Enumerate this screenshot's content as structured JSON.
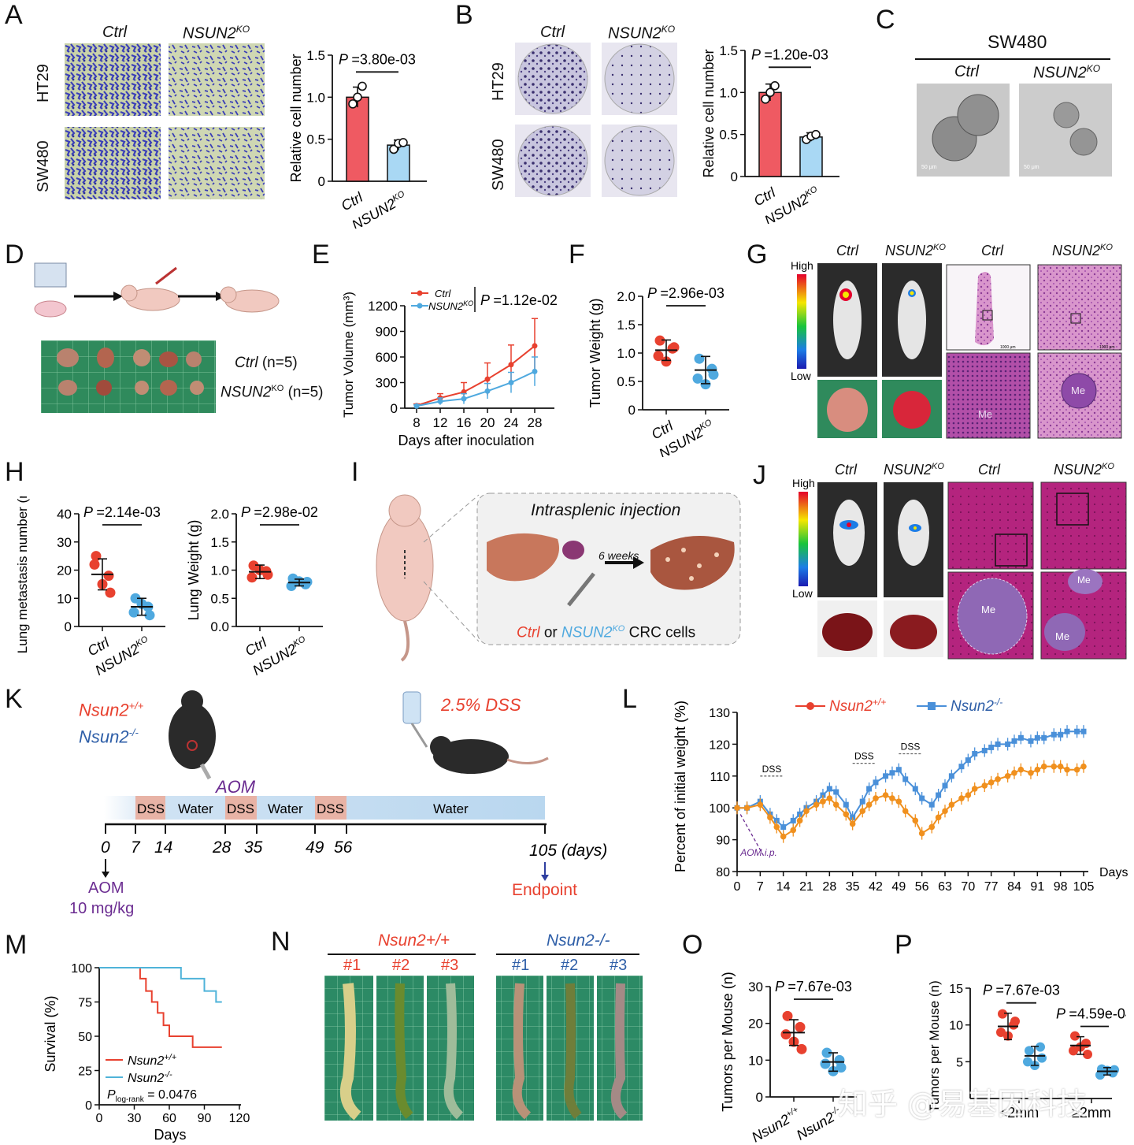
{
  "panels": {
    "A": "A",
    "B": "B",
    "C": "C",
    "D": "D",
    "E": "E",
    "F": "F",
    "G": "G",
    "H": "H",
    "I": "I",
    "J": "J",
    "K": "K",
    "L": "L",
    "M": "M",
    "N": "N",
    "O": "O",
    "P": "P"
  },
  "common": {
    "ctrl": "Ctrl",
    "nsun2ko": "NSUN2",
    "ko_sup": "KO",
    "ht29": "HT29",
    "sw480": "SW480",
    "high": "High",
    "low": "Low",
    "me": "Me"
  },
  "A": {
    "p": "P =3.80e-03",
    "ylabel": "Relative cell number",
    "yticks": [
      "0",
      "0.5",
      "1.0",
      "1.5"
    ]
  },
  "B": {
    "p": "P =1.20e-03",
    "ylabel": "Relative cell number",
    "yticks": [
      "0",
      "0.5",
      "1.0",
      "1.5"
    ]
  },
  "C": {
    "title": "SW480",
    "scale": "50 μm"
  },
  "D": {
    "ctrl_n": "Ctrl (n=5)",
    "ko_n": "(n=5)"
  },
  "E": {
    "p": "P =1.12e-02",
    "ylabel": "Tumor Volume (mm³)",
    "xlabel": "Days after inoculation",
    "xticks": [
      "8",
      "12",
      "16",
      "20",
      "24",
      "28"
    ],
    "yticks": [
      "0",
      "300",
      "600",
      "900",
      "1200"
    ]
  },
  "F": {
    "p": "P =2.96e-03",
    "ylabel": "Tumor Weight (g)",
    "yticks": [
      "0",
      "0.5",
      "1.0",
      "1.5",
      "2.0"
    ]
  },
  "G": {
    "scale": "1000 μm"
  },
  "H": {
    "p1": "P =2.14e-03",
    "ylabel1": "Lung metastasis number (n)",
    "yticks1": [
      "0",
      "10",
      "20",
      "30",
      "40"
    ],
    "p2": "P =2.98e-02",
    "ylabel2": "Lung Weight (g)",
    "yticks2": [
      "0.0",
      "0.5",
      "1.0",
      "1.5",
      "2.0"
    ]
  },
  "I": {
    "title": "Intrasplenic injection",
    "weeks": "6 weeks",
    "or": "or",
    "cells": "CRC cells"
  },
  "K": {
    "wt": "Nsun2",
    "wt_sup": "+/+",
    "ko": "Nsun2",
    "ko_sup": "-/-",
    "dss_title": "2.5% DSS",
    "aom": "AOM",
    "dss": "DSS",
    "water": "Water",
    "days": [
      "0",
      "7",
      "14",
      "28",
      "35",
      "49",
      "56",
      "105 (days)"
    ],
    "aom_dose1": "AOM",
    "aom_dose2": "10 mg/kg",
    "endpoint": "Endpoint"
  },
  "L": {
    "ylabel": "Percent of initial weight (%)",
    "xlabel": "Days",
    "legend_wt": "Nsun2+/+",
    "legend_ko": "Nsun2-/-",
    "aom_ip": "AOM i.p.",
    "dss": "DSS",
    "xticks": [
      "0",
      "7",
      "14",
      "21",
      "28",
      "35",
      "42",
      "49",
      "56",
      "63",
      "70",
      "77",
      "84",
      "91",
      "98",
      "105"
    ],
    "yticks": [
      "80",
      "90",
      "100",
      "110",
      "120",
      "130"
    ]
  },
  "M": {
    "ylabel": "Survival (%)",
    "xlabel": "Days",
    "xticks": [
      "0",
      "30",
      "60",
      "90",
      "120"
    ],
    "yticks": [
      "0",
      "25",
      "50",
      "75",
      "100"
    ],
    "legend_wt": "Nsun2+/+",
    "legend_ko": "Nsun2-/-",
    "p_prefix": "P",
    "p_sub": "log-rank",
    "p_value": "= 0.0476"
  },
  "N": {
    "wt_header": "Nsun2+/+",
    "ko_header": "Nsun2-/-",
    "samples": [
      "#1",
      "#2",
      "#3"
    ]
  },
  "O": {
    "p": "P =7.67e-03",
    "ylabel": "Tumors per Mouse (n)",
    "yticks": [
      "0",
      "10",
      "20",
      "30"
    ],
    "x1": "Nsun2+/+",
    "x2": "Nsun2-/-"
  },
  "P": {
    "p1": "P =7.67e-03",
    "p2": "P =4.59e-04",
    "ylabel": "Tumors per Mouse (n)",
    "yticks": [
      "5",
      "10",
      "15"
    ],
    "x1": "<2mm",
    "x2": "≥2mm"
  },
  "watermark": "知乎 @易基因科技",
  "colors": {
    "red": "#e8412f",
    "blue": "#4fa9df",
    "bar_red": "#ef5a62",
    "bar_blue": "#a9d8f4",
    "L_orange": "#f0901e",
    "L_blue": "#4a90d9",
    "purple": "#6b2c91"
  },
  "chart_data": [
    {
      "id": "A",
      "type": "bar",
      "categories": [
        "Ctrl",
        "NSUN2KO"
      ],
      "values": [
        1.0,
        0.43
      ],
      "errors": [
        0.12,
        0.06
      ],
      "points": [
        [
          0.92,
          1.0,
          1.13
        ],
        [
          0.38,
          0.45,
          0.46
        ]
      ],
      "ylim": [
        0,
        1.5
      ],
      "ylabel": "Relative cell number",
      "title": "P =3.80e-03"
    },
    {
      "id": "B",
      "type": "bar",
      "categories": [
        "Ctrl",
        "NSUN2KO"
      ],
      "values": [
        1.0,
        0.47
      ],
      "errors": [
        0.1,
        0.05
      ],
      "points": [
        [
          0.92,
          1.0,
          1.08
        ],
        [
          0.44,
          0.48,
          0.5
        ]
      ],
      "ylim": [
        0,
        1.5
      ],
      "ylabel": "Relative cell number",
      "title": "P =1.20e-03"
    },
    {
      "id": "E",
      "type": "line",
      "x": [
        8,
        12,
        16,
        20,
        24,
        28
      ],
      "series": [
        {
          "name": "Ctrl",
          "values": [
            30,
            120,
            190,
            340,
            510,
            730
          ],
          "errors": [
            20,
            50,
            110,
            190,
            230,
            320
          ]
        },
        {
          "name": "NSUN2KO",
          "values": [
            25,
            80,
            110,
            200,
            300,
            430
          ],
          "errors": [
            15,
            40,
            60,
            90,
            120,
            170
          ]
        }
      ],
      "ylim": [
        0,
        1200
      ],
      "xlabel": "Days after inoculation",
      "ylabel": "Tumor Volume (mm³)"
    },
    {
      "id": "F",
      "type": "scatter",
      "categories": [
        "Ctrl",
        "NSUN2KO"
      ],
      "means": [
        1.05,
        0.7
      ],
      "errors": [
        0.18,
        0.24
      ],
      "points": [
        [
          1.22,
          1.08,
          0.95,
          0.85,
          1.1
        ],
        [
          0.9,
          0.72,
          0.55,
          0.45,
          0.62
        ]
      ],
      "ylim": [
        0,
        2.0
      ],
      "ylabel": "Tumor Weight (g)"
    },
    {
      "id": "H1",
      "type": "scatter",
      "categories": [
        "Ctrl",
        "NSUN2KO"
      ],
      "means": [
        18.5,
        7
      ],
      "errors": [
        5.5,
        3
      ],
      "points": [
        [
          25,
          18,
          22,
          15,
          12
        ],
        [
          10,
          7,
          5,
          8,
          4
        ]
      ],
      "ylim": [
        0,
        40
      ],
      "ylabel": "Lung metastasis number (n)"
    },
    {
      "id": "H2",
      "type": "scatter",
      "categories": [
        "Ctrl",
        "NSUN2KO"
      ],
      "means": [
        0.97,
        0.78
      ],
      "errors": [
        0.12,
        0.06
      ],
      "points": [
        [
          1.08,
          0.98,
          0.87,
          1.0,
          0.92
        ],
        [
          0.85,
          0.75,
          0.72,
          0.8,
          0.79
        ]
      ],
      "ylim": [
        0,
        2.0
      ],
      "ylabel": "Lung Weight (g)"
    },
    {
      "id": "L",
      "type": "line",
      "x": [
        0,
        3,
        7,
        10,
        12,
        14,
        17,
        19,
        21,
        24,
        26,
        28,
        30,
        33,
        35,
        38,
        40,
        42,
        45,
        47,
        49,
        51,
        54,
        56,
        59,
        61,
        63,
        65,
        68,
        70,
        72,
        75,
        77,
        79,
        82,
        84,
        86,
        89,
        91,
        93,
        96,
        98,
        100,
        103,
        105
      ],
      "series": [
        {
          "name": "Nsun2-/-",
          "values": [
            100,
            100,
            102,
            98,
            96,
            94,
            96,
            98,
            100,
            102,
            104,
            106,
            105,
            101,
            97,
            102,
            106,
            108,
            110,
            111,
            112,
            109,
            106,
            103,
            101,
            104,
            107,
            110,
            113,
            115,
            117,
            118,
            119,
            120,
            120,
            121,
            122,
            121,
            122,
            122,
            123,
            123,
            124,
            124,
            124
          ]
        },
        {
          "name": "Nsun2+/+",
          "values": [
            100,
            100,
            101,
            97,
            94,
            91,
            93,
            96,
            99,
            101,
            102,
            103,
            101,
            98,
            95,
            99,
            101,
            103,
            104,
            103,
            102,
            99,
            96,
            92,
            94,
            97,
            99,
            101,
            103,
            104,
            106,
            107,
            108,
            109,
            110,
            111,
            112,
            111,
            112,
            113,
            113,
            113,
            112,
            112,
            113
          ]
        }
      ],
      "ylim": [
        80,
        130
      ],
      "xlabel": "Days",
      "ylabel": "Percent of initial weight (%)"
    },
    {
      "id": "M",
      "type": "line",
      "series": [
        {
          "name": "Nsun2+/+",
          "x": [
            0,
            30,
            35,
            40,
            45,
            50,
            55,
            60,
            65,
            80,
            105
          ],
          "values": [
            100,
            100,
            92,
            83,
            75,
            67,
            58,
            50,
            50,
            42,
            42
          ]
        },
        {
          "name": "Nsun2-/-",
          "x": [
            0,
            60,
            70,
            90,
            100,
            105
          ],
          "values": [
            100,
            100,
            92,
            83,
            75,
            75
          ]
        }
      ],
      "xlim": [
        0,
        120
      ],
      "ylim": [
        0,
        100
      ],
      "xlabel": "Days",
      "ylabel": "Survival (%)"
    },
    {
      "id": "O",
      "type": "scatter",
      "categories": [
        "Nsun2+/+",
        "Nsun2-/-"
      ],
      "means": [
        17.5,
        9.5
      ],
      "errors": [
        3.5,
        2.5
      ],
      "points": [
        [
          22,
          19,
          17,
          15,
          13
        ],
        [
          12,
          10,
          9,
          7,
          8
        ]
      ],
      "ylim": [
        0,
        30
      ],
      "ylabel": "Tumors per Mouse (n)"
    },
    {
      "id": "P",
      "type": "scatter",
      "groups": [
        "<2mm",
        "≥2mm"
      ],
      "series": [
        {
          "name": "Nsun2+/+",
          "means": [
            9.8,
            7.2
          ],
          "errors": [
            1.8,
            1.2
          ],
          "points": [
            [
              11.5,
              10,
              9,
              8.5,
              10.5
            ],
            [
              8.5,
              7.5,
              6.5,
              7,
              6
            ]
          ]
        },
        {
          "name": "Nsun2-/-",
          "means": [
            5.8,
            3.7
          ],
          "errors": [
            1.3,
            0.5
          ],
          "points": [
            [
              6.5,
              7,
              5,
              4.5,
              5.5
            ],
            [
              4,
              3.5,
              3.2,
              3.8,
              3.9
            ]
          ]
        }
      ],
      "ylim": [
        0,
        15
      ],
      "ylabel": "Tumors per Mouse (n)"
    }
  ]
}
